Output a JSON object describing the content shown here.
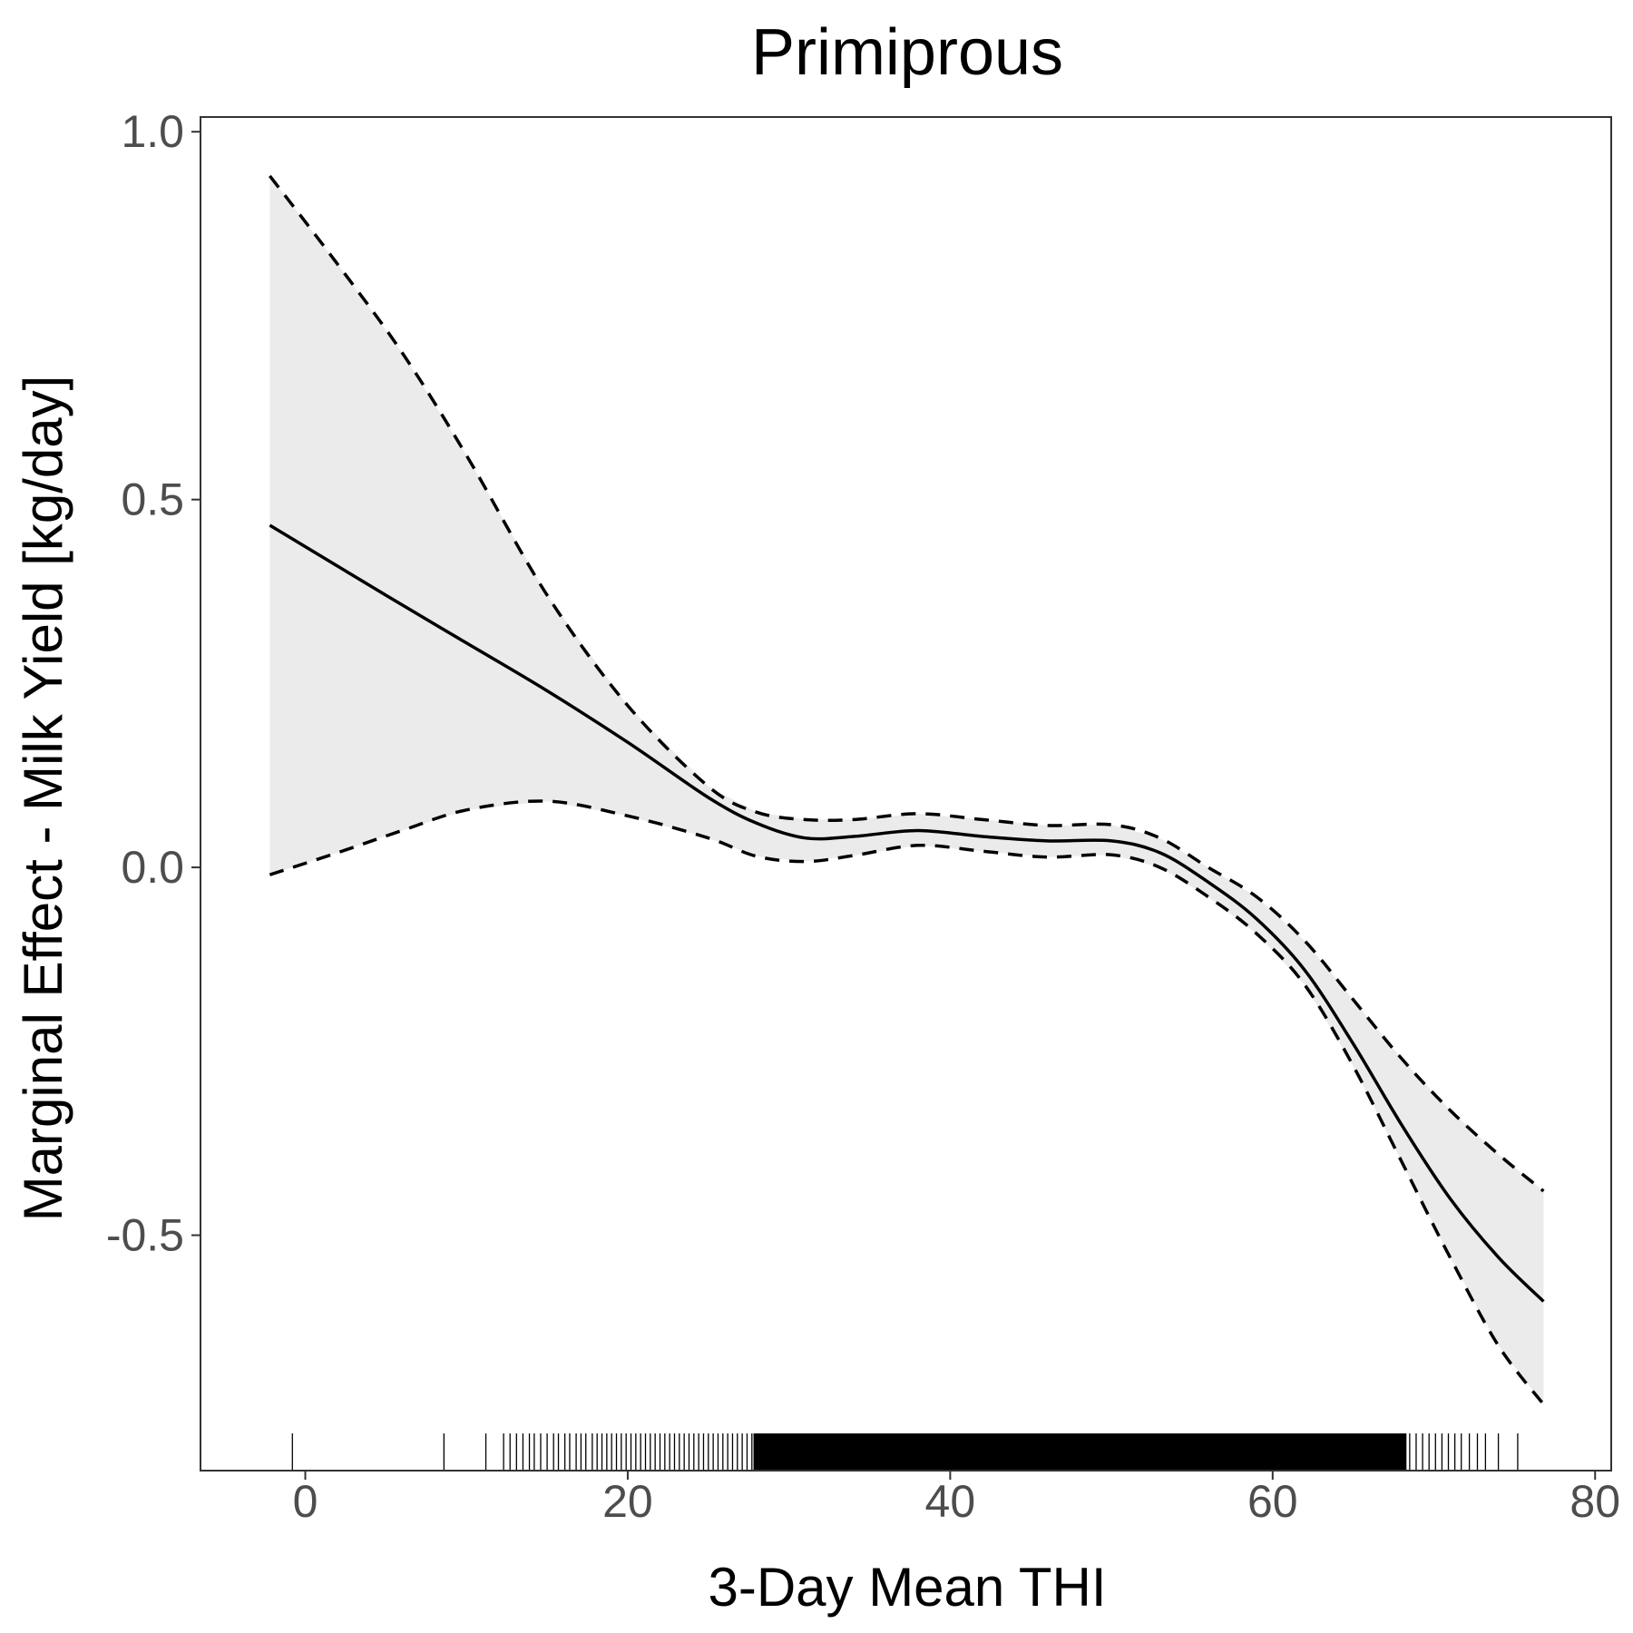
{
  "chart_data": {
    "type": "line",
    "title": "Primiprous",
    "xlabel": "3-Day Mean THI",
    "ylabel": "Marginal Effect - Milk Yield [kg/day]",
    "xlim": [
      -6.5,
      81
    ],
    "ylim": [
      -0.82,
      1.02
    ],
    "x_ticks": [
      0,
      20,
      40,
      60,
      80
    ],
    "x_tick_labels": [
      "0",
      "20",
      "40",
      "60",
      "80"
    ],
    "y_ticks": [
      -0.5,
      0.0,
      0.5,
      1.0
    ],
    "y_tick_labels": [
      "-0.5",
      "0.0",
      "0.5",
      "1.0"
    ],
    "grid": false,
    "series": [
      {
        "role": "estimate",
        "style": "solid",
        "color": "#000000",
        "x": [
          -2.2,
          5,
          10,
          15,
          20,
          25,
          28,
          31,
          34,
          38,
          42,
          46,
          50,
          53,
          56,
          59,
          62,
          65,
          68,
          71,
          74,
          76.8
        ],
        "y": [
          0.465,
          0.37,
          0.305,
          0.24,
          0.17,
          0.095,
          0.06,
          0.04,
          0.042,
          0.05,
          0.042,
          0.036,
          0.036,
          0.02,
          -0.02,
          -0.07,
          -0.14,
          -0.24,
          -0.35,
          -0.45,
          -0.53,
          -0.59
        ]
      },
      {
        "role": "upper",
        "style": "dashed",
        "color": "#000000",
        "x": [
          -2.2,
          2,
          6,
          10,
          15,
          20,
          25,
          28,
          31,
          34,
          38,
          42,
          46,
          50,
          53,
          56,
          59,
          62,
          65,
          68,
          71,
          74,
          76.8
        ],
        "y": [
          0.94,
          0.82,
          0.7,
          0.56,
          0.37,
          0.22,
          0.11,
          0.075,
          0.065,
          0.065,
          0.073,
          0.065,
          0.057,
          0.058,
          0.04,
          0.0,
          -0.04,
          -0.1,
          -0.18,
          -0.26,
          -0.33,
          -0.39,
          -0.44
        ]
      },
      {
        "role": "lower",
        "style": "dashed",
        "color": "#000000",
        "x": [
          -2.2,
          2,
          6,
          10,
          15,
          20,
          25,
          28,
          31,
          34,
          38,
          42,
          46,
          50,
          53,
          56,
          59,
          62,
          65,
          68,
          71,
          74,
          76.8
        ],
        "y": [
          -0.01,
          0.02,
          0.05,
          0.078,
          0.09,
          0.07,
          0.04,
          0.015,
          0.008,
          0.016,
          0.03,
          0.022,
          0.014,
          0.017,
          0.0,
          -0.04,
          -0.09,
          -0.16,
          -0.27,
          -0.4,
          -0.53,
          -0.65,
          -0.73
        ]
      }
    ],
    "ribbon_color": "#ebebeb",
    "rug": {
      "color": "#000000",
      "sparse_x": [
        -0.8,
        8.6,
        11.2,
        12.3,
        12.7,
        13.1,
        13.5,
        13.9,
        14.2,
        14.6,
        15.0,
        15.4,
        15.7,
        16.1,
        16.4,
        16.8,
        17.1,
        17.4,
        17.8,
        18.1,
        18.4,
        18.7,
        19.0,
        19.3,
        19.6,
        19.9,
        20.2,
        20.5,
        20.8,
        21.1,
        21.4,
        21.7,
        22.0,
        22.3,
        22.6,
        22.9,
        23.2,
        23.5,
        23.8,
        24.1,
        24.4,
        24.7,
        25.0,
        25.3,
        25.6,
        25.9,
        26.2,
        26.5,
        26.8,
        27.1,
        27.4,
        27.7,
        68.5,
        68.9,
        69.3,
        69.7,
        70.1,
        70.5,
        70.9,
        71.3,
        71.7,
        72.2,
        72.7,
        73.2,
        74.0,
        75.2
      ],
      "dense_range": [
        27.8,
        68.3
      ]
    }
  }
}
